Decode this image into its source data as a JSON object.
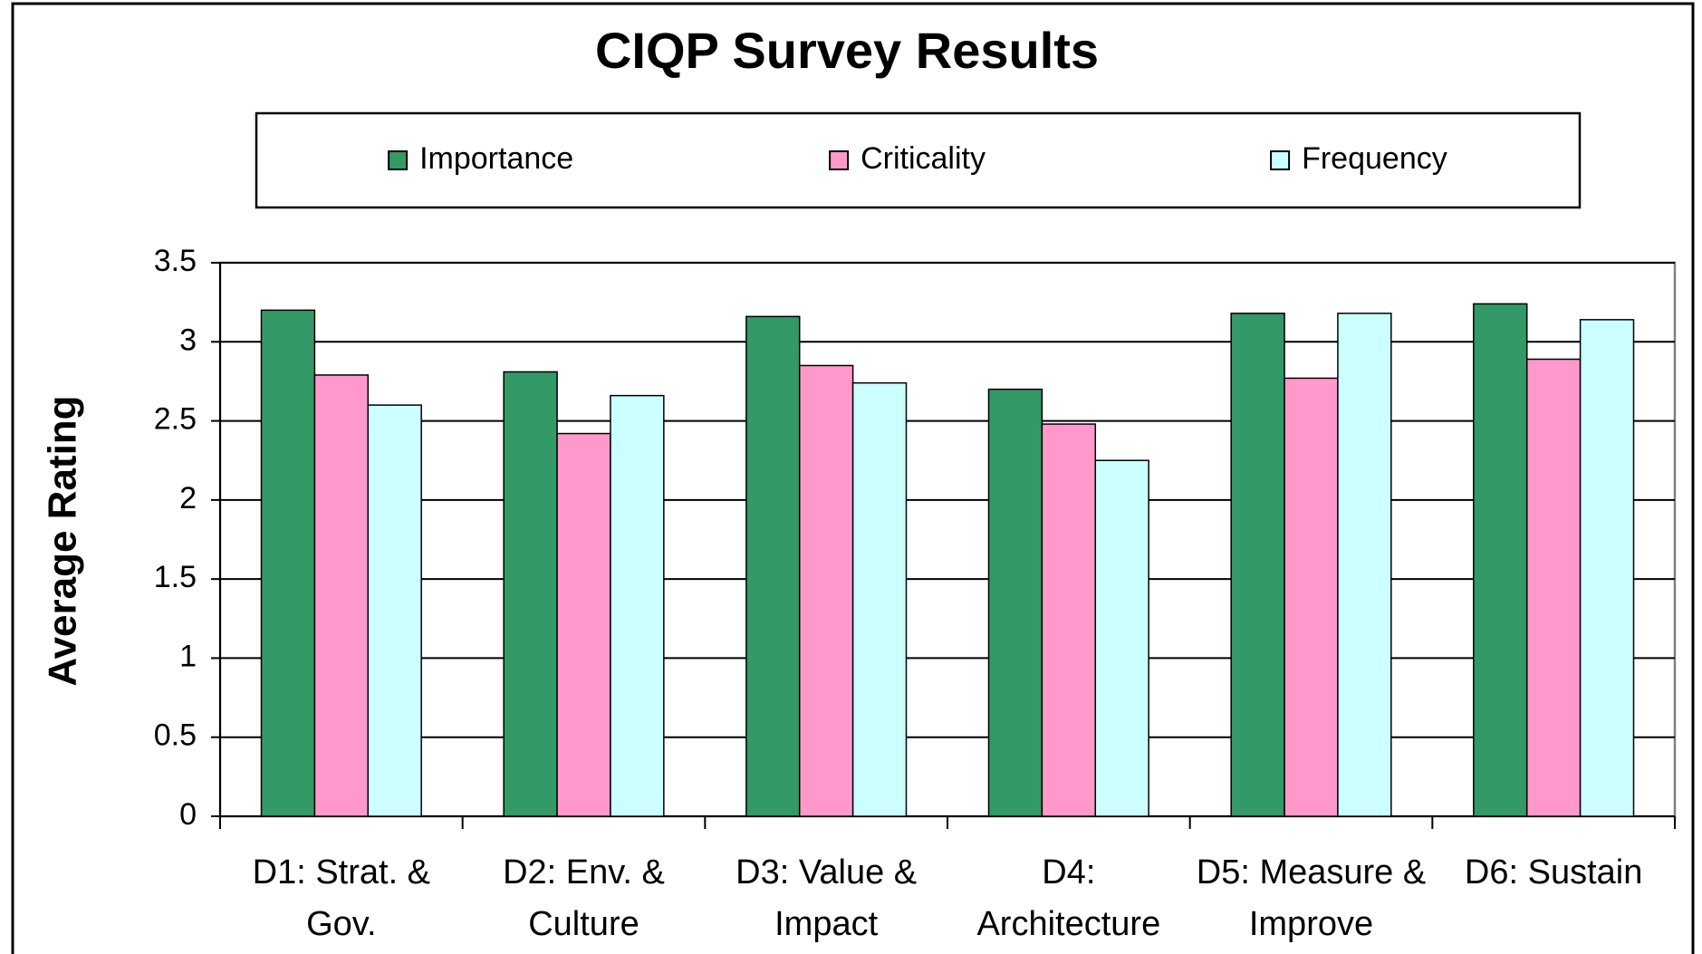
{
  "chart_data": {
    "type": "bar",
    "title": "CIQP Survey Results",
    "y_label": "Average Rating",
    "categories": [
      "D1: Strat. & Gov.",
      "D2: Env. & Culture",
      "D3: Value & Impact",
      "D4: Architecture",
      "D5: Measure & Improve",
      "D6: Sustain"
    ],
    "series": [
      {
        "name": "Importance",
        "color": "#339966",
        "values": [
          3.2,
          2.81,
          3.16,
          2.7,
          3.18,
          3.24
        ]
      },
      {
        "name": "Criticality",
        "color": "#ff99cc",
        "values": [
          2.79,
          2.42,
          2.85,
          2.48,
          2.77,
          2.89
        ]
      },
      {
        "name": "Frequency",
        "color": "#ccffff",
        "values": [
          2.6,
          2.66,
          2.74,
          2.25,
          3.18,
          3.14
        ]
      }
    ],
    "ylim": [
      0,
      3.5
    ],
    "yticks": [
      0,
      0.5,
      1,
      1.5,
      2,
      2.5,
      3,
      3.5
    ],
    "grid": true,
    "legend": "top"
  }
}
